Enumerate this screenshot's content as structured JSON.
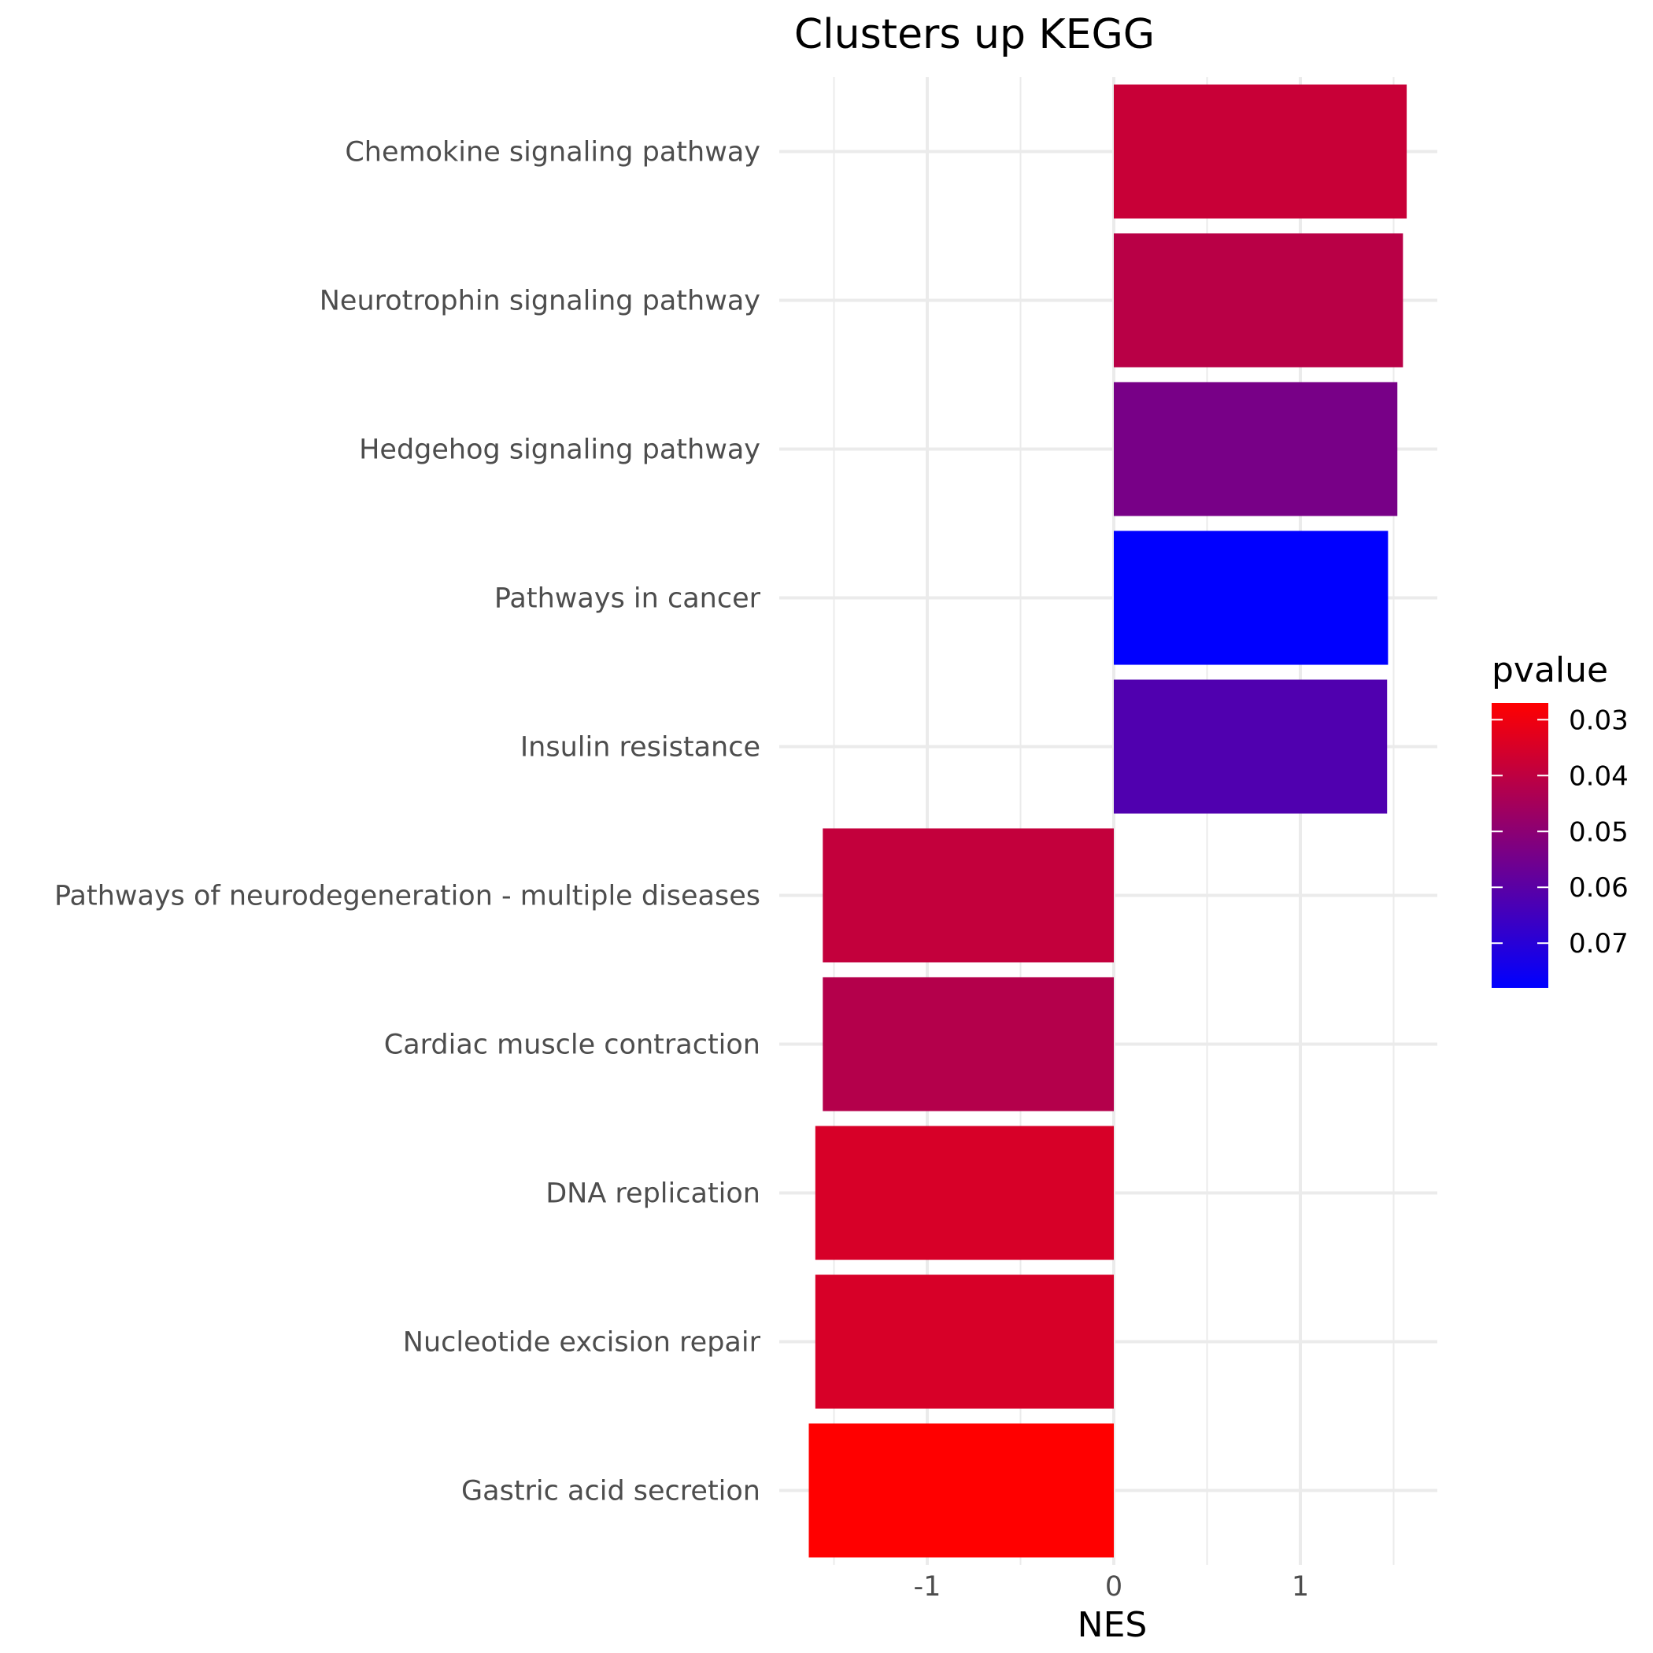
{
  "chart_data": {
    "type": "bar",
    "orientation": "horizontal",
    "title": "Clusters up KEGG",
    "xlabel": "NES",
    "ylabel": "",
    "xlim": [
      -1.65,
      1.75
    ],
    "x_ticks": [
      -1,
      0,
      1
    ],
    "grid": true,
    "legend": {
      "title": "pvalue",
      "placement": "right",
      "type": "colorbar",
      "low_color": "#ff0000",
      "high_color": "#0000ff",
      "range": [
        0.027,
        0.078
      ],
      "ticks": [
        0.03,
        0.04,
        0.05,
        0.06,
        0.07
      ]
    },
    "categories": [
      "Chemokine signaling pathway",
      "Neurotrophin signaling pathway",
      "Hedgehog signaling pathway",
      "Pathways in cancer",
      "Insulin resistance",
      "Pathways of neurodegeneration - multiple diseases",
      "Cardiac muscle contraction",
      "DNA replication",
      "Nucleotide excision repair",
      "Gastric acid secretion"
    ],
    "values": [
      1.57,
      1.55,
      1.52,
      1.47,
      1.465,
      -1.56,
      -1.56,
      -1.6,
      -1.6,
      -1.635
    ],
    "pvalue": [
      0.038,
      0.041,
      0.054,
      0.078,
      0.062,
      0.039,
      0.042,
      0.035,
      0.035,
      0.027
    ]
  }
}
